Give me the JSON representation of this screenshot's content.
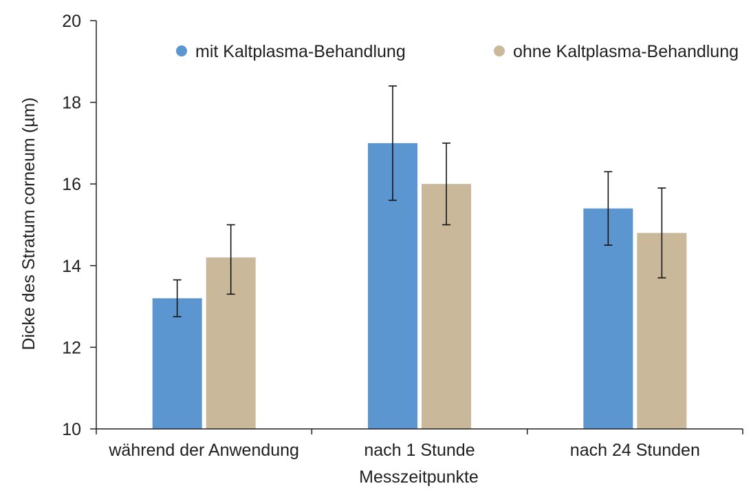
{
  "chart_data": {
    "type": "bar",
    "title": "",
    "xlabel": "Messzeitpunkte",
    "ylabel": "Dicke des Stratum corneum (µm)",
    "ylim": [
      10,
      20
    ],
    "yticks": [
      10,
      12,
      14,
      16,
      18,
      20
    ],
    "grid": false,
    "legend_position": "top",
    "categories": [
      "während der Anwendung",
      "nach 1 Stunde",
      "nach 24 Stunden"
    ],
    "series": [
      {
        "name": "mit Kaltplasma-Behandlung",
        "color": "#5b96d0",
        "values": [
          13.2,
          17.0,
          15.4
        ],
        "error_low": [
          12.75,
          15.6,
          14.5
        ],
        "error_high": [
          13.65,
          18.4,
          16.3
        ]
      },
      {
        "name": "ohne Kaltplasma-Behandlung",
        "color": "#c9b99a",
        "values": [
          14.2,
          16.0,
          14.8
        ],
        "error_low": [
          13.3,
          15.0,
          13.7
        ],
        "error_high": [
          15.0,
          17.0,
          15.9
        ]
      }
    ]
  }
}
